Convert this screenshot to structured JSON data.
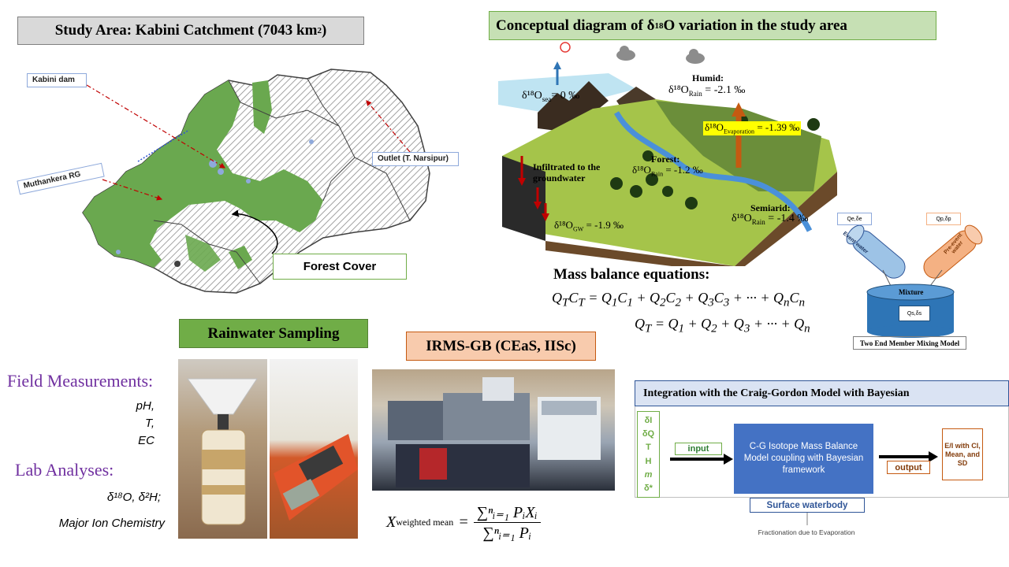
{
  "study_area": {
    "title": "Study Area: Kabini Catchment (7043 km",
    "title_sup": "2",
    "title_end": ")",
    "kabini_dam": "Kabini dam",
    "muthankera": "Muthankera RG",
    "outlet": "Outlet (T. Narsipur)",
    "forest_cover": "Forest Cover"
  },
  "conceptual": {
    "title": "Conceptual diagram of δ",
    "title_sup": "18",
    "title_end": "O variation in the study area",
    "sea": "δ¹⁸O",
    "sea_sub": "sea",
    "sea_val": "= 0 ‰",
    "humid": "Humid:",
    "humid_val_pre": "δ¹⁸O",
    "humid_sub": "Rain",
    "humid_val": " = -2.1 ‰",
    "evap_pre": "δ¹⁸O",
    "evap_sub": "Evaporation",
    "evap_val": " = -1.39 ‰",
    "infiltrated": "Infiltrated to the groundwater",
    "forest": "Forest:",
    "forest_pre": "δ¹⁸O",
    "forest_sub": "Rain",
    "forest_val": " = -1.2 ‰",
    "semiarid": "Semiarid:",
    "semiarid_pre": "δ¹⁸O",
    "semiarid_sub": "Rain",
    "semiarid_val": " = -1.4 ‰",
    "gw_pre": "δ¹⁸O",
    "gw_sub": "GW",
    "gw_val": " = -1.9 ‰"
  },
  "mass_balance": {
    "heading": "Mass balance equations:",
    "eq1": "QTCT = Q1C1 + Q2C2 + Q3C3 + ··· + QnCn",
    "eq2": "QT = Q1 + Q2 + Q3 + ··· + Qn"
  },
  "mixing": {
    "q_left": "Qe,δe",
    "q_right": "Qp,δp",
    "event_water": "Event water",
    "pre_event_water": "Pre-event water",
    "mixture": "Mixture",
    "mixture_q": "Qs,δs",
    "caption": "Two End Member Mixing Model"
  },
  "rainwater": {
    "title": "Rainwater Sampling"
  },
  "field": {
    "heading": "Field Measurements:",
    "items": [
      "pH,",
      "T,",
      "EC"
    ]
  },
  "lab": {
    "heading": "Lab Analyses:",
    "isotopes": "δ¹⁸O, δ²H;",
    "ions": "Major Ion Chemistry"
  },
  "irms": {
    "title": "IRMS-GB (CEaS, IISc)",
    "formula_lhs": "X",
    "formula_sub": "weighted mean",
    "formula_num": "∑ⁿᵢ₌₁ PᵢXᵢ",
    "formula_den": "∑ⁿᵢ₌₁ Pᵢ"
  },
  "craig_gordon": {
    "title": "Integration with the Craig-Gordon Model with Bayesian",
    "inputs": [
      "δI",
      "δQ",
      "T",
      "H",
      "m",
      "δ*"
    ],
    "input_label": "input",
    "model_text": "C-G Isotope Mass Balance Model coupling with Bayesian framework",
    "output_label": "output",
    "result": "E/I with CI, Mean, and SD",
    "surface": "Surface waterbody",
    "fractionation": "Fractionation due to Evaporation"
  },
  "colors": {
    "gray_box": "#d9d9d9",
    "green_box": "#c6e0b4",
    "rain_green": "#70ad47",
    "irms_orange": "#f8cbad",
    "cg_blue": "#dae3f3",
    "model_blue": "#4472c4",
    "forest_green": "#6aa84f"
  }
}
